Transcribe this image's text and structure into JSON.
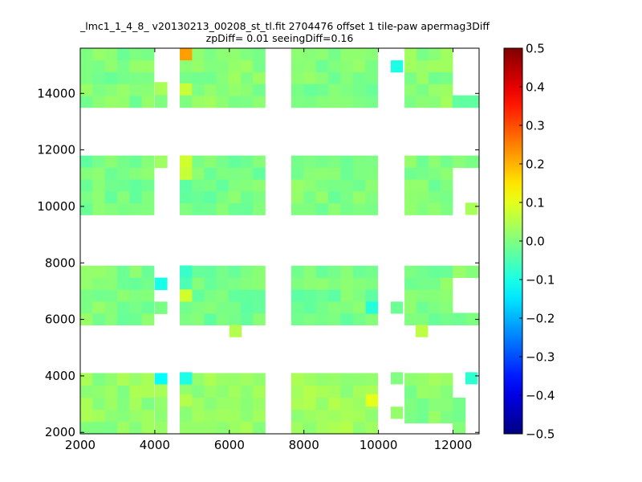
{
  "chart_data": {
    "type": "heatmap",
    "title": "_lmc1_1_4_8_ v20130213_00208_st_tl.fit 2704476 offset 1 tile-paw apermag3Diff",
    "subtitle": "zpDiff= 0.01 seeingDiff=0.16",
    "xlim": [
      2000,
      12700
    ],
    "ylim": [
      1950,
      15600
    ],
    "x_ticks": [
      2000,
      4000,
      6000,
      8000,
      10000,
      12000
    ],
    "y_ticks": [
      2000,
      4000,
      6000,
      8000,
      10000,
      12000,
      14000
    ],
    "cell_size": [
      330,
      430
    ],
    "colorbar": {
      "min": -0.5,
      "max": 0.5,
      "ticks": [
        0.5,
        0.4,
        0.3,
        0.2,
        0.1,
        0.0,
        -0.1,
        -0.2,
        -0.3,
        -0.4,
        -0.5
      ],
      "tick_labels": [
        "0.5",
        "0.4",
        "0.3",
        "0.2",
        "0.1",
        "0.0",
        "−0.1",
        "−0.2",
        "−0.3",
        "−0.4",
        "−0.5"
      ],
      "colormap": "jet"
    },
    "regions": [
      {
        "x": [
          2000,
          3980
        ],
        "y": [
          13500,
          15600
        ],
        "base": 0.0,
        "pattern": 1
      },
      {
        "x": [
          4000,
          4330
        ],
        "y": [
          13500,
          14400
        ],
        "base": 0.02,
        "pattern": 2
      },
      {
        "x": [
          4670,
          6960
        ],
        "y": [
          13500,
          15600
        ],
        "base": 0.01,
        "pattern": 3
      },
      {
        "x": [
          7660,
          9980
        ],
        "y": [
          13500,
          15600
        ],
        "base": 0.0,
        "pattern": 4
      },
      {
        "x": [
          10700,
          11990
        ],
        "y": [
          13500,
          15600
        ],
        "base": 0.01,
        "pattern": 5
      },
      {
        "x": [
          11990,
          12700
        ],
        "y": [
          13500,
          13930
        ],
        "base": -0.02,
        "pattern": 6
      },
      {
        "x": [
          2000,
          3980
        ],
        "y": [
          9700,
          11800
        ],
        "base": -0.01,
        "pattern": 7
      },
      {
        "x": [
          4000,
          4330
        ],
        "y": [
          11370,
          11800
        ],
        "base": 0.01,
        "pattern": 8
      },
      {
        "x": [
          4670,
          6960
        ],
        "y": [
          9700,
          11800
        ],
        "base": -0.01,
        "pattern": 9
      },
      {
        "x": [
          7660,
          9980
        ],
        "y": [
          9700,
          11800
        ],
        "base": 0.0,
        "pattern": 10
      },
      {
        "x": [
          10700,
          11990
        ],
        "y": [
          9700,
          11800
        ],
        "base": 0.0,
        "pattern": 11
      },
      {
        "x": [
          11990,
          12700
        ],
        "y": [
          11370,
          11800
        ],
        "base": 0.01,
        "pattern": 12
      },
      {
        "x": [
          2000,
          3980
        ],
        "y": [
          5800,
          7900
        ],
        "base": 0.0,
        "pattern": 13
      },
      {
        "x": [
          4000,
          4330
        ],
        "y": [
          7050,
          7480
        ],
        "base": -0.08,
        "pattern": 14
      },
      {
        "x": [
          4000,
          4330
        ],
        "y": [
          6200,
          6630
        ],
        "base": 0.0,
        "pattern": 15
      },
      {
        "x": [
          4670,
          6960
        ],
        "y": [
          5800,
          7900
        ],
        "base": -0.01,
        "pattern": 16
      },
      {
        "x": [
          7660,
          9980
        ],
        "y": [
          5800,
          7900
        ],
        "base": -0.01,
        "pattern": 17
      },
      {
        "x": [
          10700,
          11990
        ],
        "y": [
          5800,
          7900
        ],
        "base": 0.0,
        "pattern": 18
      },
      {
        "x": [
          11990,
          12700
        ],
        "y": [
          7480,
          7900
        ],
        "base": 0.02,
        "pattern": 19
      },
      {
        "x": [
          11990,
          12700
        ],
        "y": [
          5800,
          6230
        ],
        "base": 0.0,
        "pattern": 20
      },
      {
        "x": [
          2000,
          3980
        ],
        "y": [
          1950,
          4100
        ],
        "base": 0.02,
        "pattern": 21
      },
      {
        "x": [
          4000,
          4330
        ],
        "y": [
          3700,
          4100
        ],
        "base": -0.1,
        "pattern": 22
      },
      {
        "x": [
          4000,
          4330
        ],
        "y": [
          1950,
          3700
        ],
        "base": 0.02,
        "pattern": 23
      },
      {
        "x": [
          4670,
          6960
        ],
        "y": [
          1950,
          4100
        ],
        "base": 0.02,
        "pattern": 24
      },
      {
        "x": [
          7660,
          9980
        ],
        "y": [
          1950,
          4100
        ],
        "base": 0.03,
        "pattern": 25
      },
      {
        "x": [
          10700,
          11990
        ],
        "y": [
          2330,
          4100
        ],
        "base": 0.01,
        "pattern": 26
      },
      {
        "x": [
          11990,
          12330
        ],
        "y": [
          1950,
          3230
        ],
        "base": 0.01,
        "pattern": 27
      }
    ],
    "special_cells": [
      {
        "x": 4670,
        "y": 15170,
        "value": 0.22
      },
      {
        "x": 10330,
        "y": 14740,
        "value": -0.1
      },
      {
        "x": 4670,
        "y": 7480,
        "value": -0.07
      },
      {
        "x": 4670,
        "y": 7050,
        "value": -0.05
      },
      {
        "x": 9660,
        "y": 6200,
        "value": -0.09
      },
      {
        "x": 10330,
        "y": 6200,
        "value": -0.02
      },
      {
        "x": 4670,
        "y": 3700,
        "value": -0.1
      },
      {
        "x": 12330,
        "y": 3700,
        "value": -0.08
      },
      {
        "x": 10330,
        "y": 3700,
        "value": 0.0
      },
      {
        "x": 10330,
        "y": 2480,
        "value": 0.02
      },
      {
        "x": 11000,
        "y": 5370,
        "value": 0.06
      },
      {
        "x": 6000,
        "y": 5370,
        "value": 0.05
      },
      {
        "x": 12330,
        "y": 9700,
        "value": 0.04
      },
      {
        "x": 4670,
        "y": 13930,
        "value": 0.07
      },
      {
        "x": 4670,
        "y": 11370,
        "value": 0.08
      },
      {
        "x": 4670,
        "y": 10940,
        "value": 0.07
      },
      {
        "x": 4670,
        "y": 6630,
        "value": 0.08
      },
      {
        "x": 11000,
        "y": 13500,
        "value": 0.01
      },
      {
        "x": 9660,
        "y": 2920,
        "value": 0.1
      },
      {
        "x": 4670,
        "y": 2920,
        "value": 0.05
      }
    ]
  }
}
